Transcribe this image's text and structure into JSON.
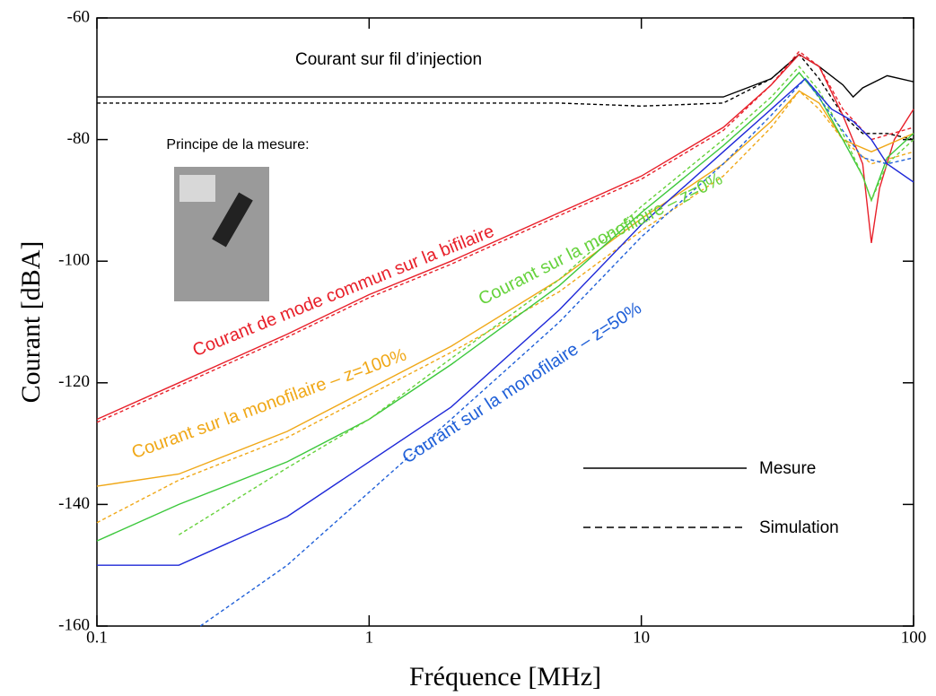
{
  "chart_data": {
    "type": "line",
    "x_label": "Fréquence [MHz]",
    "y_label": "Courant [dBA]",
    "log_x": true,
    "xlim": [
      0.1,
      100
    ],
    "xticks": [
      0.1,
      1,
      10,
      100
    ],
    "ylim": [
      -160,
      -60
    ],
    "yticks": [
      -160,
      -140,
      -120,
      -100,
      -80,
      -60
    ],
    "legend": [
      {
        "label": "Mesure",
        "style": "solid"
      },
      {
        "label": "Simulation",
        "style": "dashed"
      }
    ],
    "annotations": [
      {
        "text": "Courant sur fil d’injection",
        "color": "#000000"
      },
      {
        "text": "Principe de la mesure:",
        "color": "#000000"
      },
      {
        "text": "Courant de mode commun sur la bifilaire",
        "color": "#e8202a"
      },
      {
        "text": "Courant sur la monofilaire – z=100%",
        "color": "#f0a818"
      },
      {
        "text": "Courant sur la monofilaire – z=0%",
        "color": "#66d23c"
      },
      {
        "text": "Courant sur la monofilaire – z=50%",
        "color": "#2060d8"
      }
    ],
    "series": [
      {
        "style": "solid",
        "color": "#000000",
        "x": [
          0.1,
          1,
          5,
          10,
          20,
          30,
          38,
          45,
          55,
          60,
          65,
          80,
          100
        ],
        "values": [
          -73,
          -73,
          -73,
          -73,
          -73,
          -70,
          -66,
          -68,
          -71,
          -73,
          -71.5,
          -69.5,
          -70.5
        ]
      },
      {
        "style": "dashed",
        "color": "#000000",
        "x": [
          0.1,
          1,
          5,
          10,
          20,
          30,
          38,
          45,
          55,
          65,
          80,
          100
        ],
        "values": [
          -74,
          -74,
          -74,
          -74.5,
          -74,
          -70,
          -66,
          -70,
          -76,
          -79,
          -79,
          -80
        ]
      },
      {
        "style": "solid",
        "color": "#e8202a",
        "x": [
          0.1,
          0.2,
          0.5,
          1,
          2,
          5,
          10,
          20,
          30,
          38,
          45,
          55,
          65,
          70,
          75,
          85,
          100
        ],
        "values": [
          -126,
          -120,
          -112,
          -105.5,
          -100,
          -92,
          -86,
          -78,
          -71,
          -66,
          -68,
          -76,
          -84,
          -97,
          -88,
          -80,
          -75
        ]
      },
      {
        "style": "dashed",
        "color": "#e8202a",
        "x": [
          0.1,
          0.2,
          0.5,
          1,
          2,
          5,
          10,
          20,
          30,
          38,
          45,
          55,
          70,
          100
        ],
        "values": [
          -126.5,
          -120.5,
          -112.5,
          -106,
          -100.5,
          -92.5,
          -86.5,
          -78.5,
          -71,
          -65.5,
          -68,
          -75,
          -80,
          -78
        ]
      },
      {
        "style": "solid",
        "color": "#f0a818",
        "x": [
          0.1,
          0.2,
          0.5,
          1,
          2,
          5,
          10,
          20,
          30,
          38,
          45,
          55,
          70,
          100
        ],
        "values": [
          -137,
          -135,
          -128,
          -121,
          -114,
          -103,
          -93,
          -84,
          -77,
          -72,
          -74,
          -80,
          -82,
          -79
        ]
      },
      {
        "style": "dashed",
        "color": "#f0a818",
        "x": [
          0.1,
          0.2,
          0.5,
          1,
          2,
          5,
          10,
          20,
          30,
          38,
          45,
          55,
          70,
          100
        ],
        "values": [
          -143,
          -136,
          -129,
          -122,
          -115,
          -105,
          -95,
          -86,
          -78,
          -72,
          -75,
          -80,
          -84,
          -82
        ]
      },
      {
        "style": "solid",
        "color": "#3cc83c",
        "x": [
          0.1,
          0.2,
          0.5,
          1,
          2,
          5,
          10,
          20,
          30,
          38,
          45,
          55,
          65,
          70,
          80,
          100
        ],
        "values": [
          -146,
          -140,
          -133,
          -126,
          -117,
          -104,
          -92,
          -81,
          -74,
          -69,
          -73,
          -80,
          -86,
          -90,
          -83,
          -79
        ]
      },
      {
        "style": "dashed",
        "color": "#66d23c",
        "x": [
          0.2,
          0.5,
          1,
          2,
          5,
          10,
          20,
          30,
          38,
          45,
          55,
          65,
          70,
          80,
          100
        ],
        "values": [
          -145,
          -134,
          -126,
          -116,
          -103,
          -91,
          -80,
          -73,
          -68,
          -72,
          -79,
          -86,
          -90,
          -84,
          -80
        ]
      },
      {
        "style": "solid",
        "color": "#1e28d8",
        "x": [
          0.1,
          0.2,
          0.5,
          1,
          2,
          5,
          10,
          20,
          30,
          40,
          50,
          60,
          70,
          80,
          100
        ],
        "values": [
          -150,
          -150,
          -142,
          -133,
          -124,
          -108,
          -94,
          -82,
          -75,
          -70,
          -75,
          -77,
          -80,
          -84,
          -87
        ]
      },
      {
        "style": "dashed",
        "color": "#2060d8",
        "x": [
          0.24,
          0.5,
          1,
          2,
          5,
          10,
          20,
          30,
          40,
          50,
          65,
          80,
          100
        ],
        "values": [
          -160,
          -150,
          -138,
          -126,
          -110,
          -96,
          -84,
          -76,
          -70,
          -76,
          -83,
          -84,
          -83
        ]
      }
    ]
  }
}
